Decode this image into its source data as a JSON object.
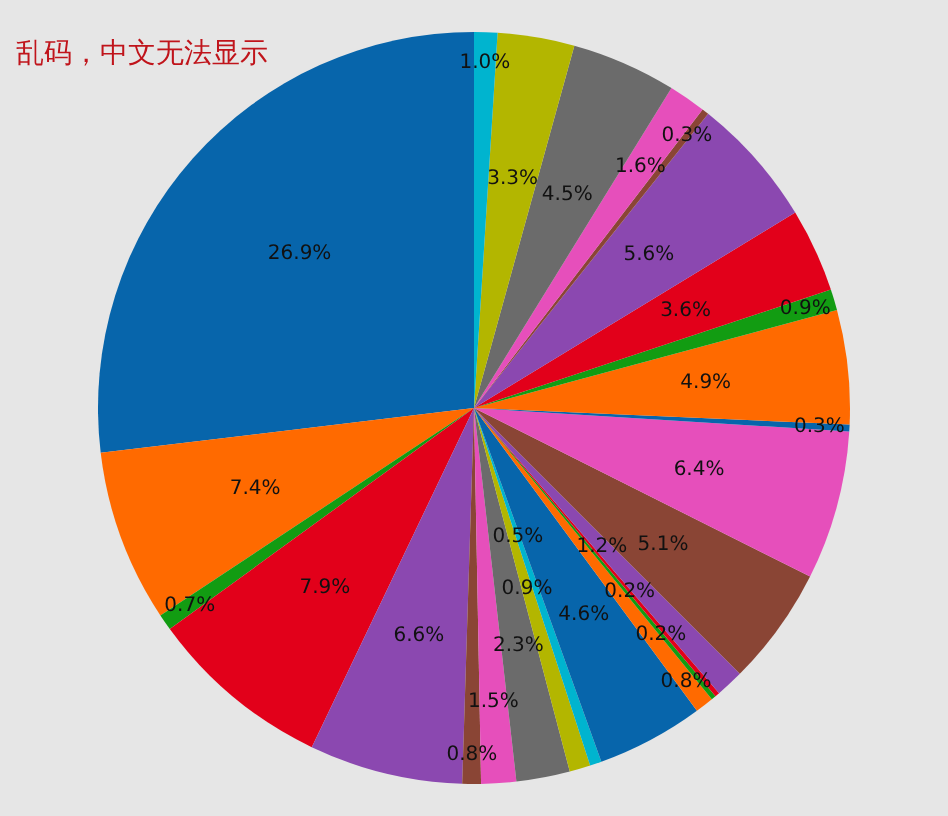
{
  "chart_data": {
    "type": "pie",
    "categories": [
      null,
      null,
      null,
      null,
      null,
      null,
      null,
      null,
      null,
      null,
      null,
      null,
      null,
      null,
      null,
      null,
      null,
      null,
      null,
      null,
      null,
      null,
      null,
      null,
      null,
      null,
      null
    ],
    "values": [
      26.9,
      7.4,
      0.7,
      7.9,
      6.6,
      0.8,
      1.5,
      2.3,
      0.9,
      0.5,
      4.6,
      0.8,
      0.2,
      0.2,
      1.2,
      5.1,
      6.4,
      0.3,
      4.9,
      0.9,
      3.6,
      5.6,
      0.3,
      1.6,
      4.5,
      3.3,
      1.0
    ],
    "value_labels": [
      "26.9%",
      "7.4%",
      "0.7%",
      "7.9%",
      "6.6%",
      "0.8%",
      "1.5%",
      "2.3%",
      "0.9%",
      "0.5%",
      "4.6%",
      "0.8%",
      "0.2%",
      "0.2%",
      "1.2%",
      "5.1%",
      "6.4%",
      "0.3%",
      "4.9%",
      "0.9%",
      "3.6%",
      "5.6%",
      "0.3%",
      "1.6%",
      "4.5%",
      "3.3%",
      "1.0%"
    ],
    "colors": [
      "#0765ab",
      "#ff6a00",
      "#129c12",
      "#e2001a",
      "#8b48b0",
      "#8a4535",
      "#e64fbb",
      "#6b6b6b",
      "#b3b600",
      "#00b4cf",
      "#0765ab",
      "#ff6a00",
      "#129c12",
      "#e2001a",
      "#8b48b0",
      "#8a4535",
      "#e64fbb",
      "#0765ab",
      "#ff6a00",
      "#129c12",
      "#e2001a",
      "#8b48b0",
      "#8a4535",
      "#e64fbb",
      "#6b6b6b",
      "#b3b600",
      "#00b4cf"
    ],
    "annotations": [
      "乱码，中文无法显示"
    ]
  }
}
